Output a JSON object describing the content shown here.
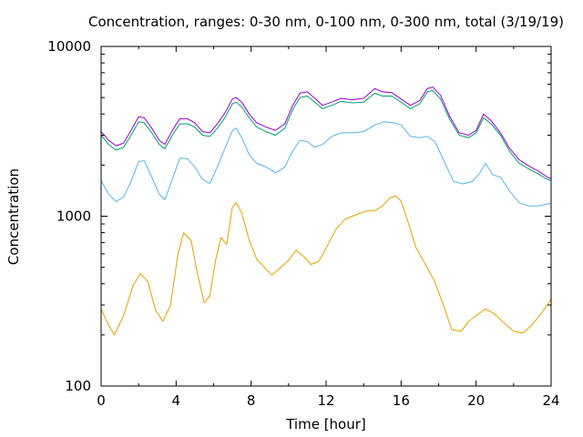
{
  "chart_data": {
    "type": "line",
    "title": "Concentration, ranges: 0-30 nm, 0-100 nm, 0-300 nm, total (3/19/19)",
    "xlabel": "Time [hour]",
    "ylabel": "Concentration",
    "xlim": [
      0,
      24
    ],
    "ylim": [
      100,
      10000
    ],
    "yscale": "log",
    "xticks": [
      0,
      4,
      8,
      12,
      16,
      20,
      24
    ],
    "xtick_labels": [
      "0",
      "4",
      "8",
      "12",
      "16",
      "20",
      "24"
    ],
    "yticks": [
      100,
      1000,
      10000
    ],
    "ytick_labels": [
      "100",
      "1000",
      "10000"
    ],
    "grid": false,
    "legend": "none",
    "series": [
      {
        "color": "#e69f00",
        "points": [
          [
            0,
            285
          ],
          [
            0.3,
            240
          ],
          [
            0.7,
            200
          ],
          [
            1.2,
            260
          ],
          [
            1.7,
            390
          ],
          [
            2.1,
            460
          ],
          [
            2.5,
            410
          ],
          [
            2.9,
            280
          ],
          [
            3.3,
            240
          ],
          [
            3.7,
            300
          ],
          [
            4.1,
            600
          ],
          [
            4.4,
            800
          ],
          [
            4.8,
            720
          ],
          [
            5.1,
            480
          ],
          [
            5.5,
            310
          ],
          [
            5.8,
            340
          ],
          [
            6.1,
            550
          ],
          [
            6.4,
            750
          ],
          [
            6.7,
            680
          ],
          [
            7.0,
            1130
          ],
          [
            7.2,
            1200
          ],
          [
            7.5,
            1050
          ],
          [
            7.9,
            720
          ],
          [
            8.3,
            560
          ],
          [
            8.7,
            500
          ],
          [
            9.1,
            450
          ],
          [
            9.5,
            490
          ],
          [
            10.0,
            550
          ],
          [
            10.4,
            630
          ],
          [
            10.8,
            580
          ],
          [
            11.2,
            520
          ],
          [
            11.6,
            540
          ],
          [
            12.1,
            680
          ],
          [
            12.5,
            830
          ],
          [
            13.0,
            960
          ],
          [
            13.6,
            1020
          ],
          [
            14.1,
            1070
          ],
          [
            14.6,
            1080
          ],
          [
            15.0,
            1150
          ],
          [
            15.4,
            1280
          ],
          [
            15.7,
            1320
          ],
          [
            16.0,
            1230
          ],
          [
            16.4,
            900
          ],
          [
            16.8,
            650
          ],
          [
            17.3,
            520
          ],
          [
            17.8,
            410
          ],
          [
            18.3,
            290
          ],
          [
            18.7,
            215
          ],
          [
            19.2,
            210
          ],
          [
            19.6,
            240
          ],
          [
            20.1,
            265
          ],
          [
            20.5,
            285
          ],
          [
            21.0,
            265
          ],
          [
            21.5,
            235
          ],
          [
            22.0,
            210
          ],
          [
            22.5,
            205
          ],
          [
            23.0,
            230
          ],
          [
            23.5,
            270
          ],
          [
            24.0,
            325
          ]
        ]
      },
      {
        "color": "#56b4e9",
        "points": [
          [
            0,
            1620
          ],
          [
            0.4,
            1350
          ],
          [
            0.8,
            1220
          ],
          [
            1.2,
            1300
          ],
          [
            1.6,
            1600
          ],
          [
            2.0,
            2100
          ],
          [
            2.3,
            2120
          ],
          [
            2.7,
            1700
          ],
          [
            3.1,
            1350
          ],
          [
            3.4,
            1250
          ],
          [
            3.8,
            1650
          ],
          [
            4.2,
            2200
          ],
          [
            4.6,
            2180
          ],
          [
            5.0,
            1950
          ],
          [
            5.4,
            1650
          ],
          [
            5.8,
            1560
          ],
          [
            6.2,
            1950
          ],
          [
            6.6,
            2500
          ],
          [
            7.0,
            3200
          ],
          [
            7.2,
            3300
          ],
          [
            7.5,
            2900
          ],
          [
            7.9,
            2300
          ],
          [
            8.3,
            2050
          ],
          [
            8.8,
            1950
          ],
          [
            9.3,
            1800
          ],
          [
            9.8,
            1950
          ],
          [
            10.2,
            2400
          ],
          [
            10.6,
            2800
          ],
          [
            11.0,
            2750
          ],
          [
            11.4,
            2550
          ],
          [
            11.8,
            2650
          ],
          [
            12.3,
            2950
          ],
          [
            12.8,
            3100
          ],
          [
            13.4,
            3100
          ],
          [
            14.0,
            3150
          ],
          [
            14.6,
            3450
          ],
          [
            15.1,
            3600
          ],
          [
            15.6,
            3550
          ],
          [
            16.0,
            3450
          ],
          [
            16.5,
            2950
          ],
          [
            17.0,
            2900
          ],
          [
            17.4,
            2950
          ],
          [
            17.8,
            2750
          ],
          [
            18.3,
            2100
          ],
          [
            18.8,
            1600
          ],
          [
            19.3,
            1550
          ],
          [
            19.8,
            1600
          ],
          [
            20.2,
            1800
          ],
          [
            20.5,
            2050
          ],
          [
            20.9,
            1750
          ],
          [
            21.3,
            1700
          ],
          [
            21.8,
            1400
          ],
          [
            22.3,
            1200
          ],
          [
            22.8,
            1150
          ],
          [
            23.3,
            1150
          ],
          [
            23.8,
            1180
          ],
          [
            24.0,
            1190
          ]
        ]
      },
      {
        "color": "#009e73",
        "points": [
          [
            0,
            3000
          ],
          [
            0.4,
            2650
          ],
          [
            0.8,
            2450
          ],
          [
            1.2,
            2550
          ],
          [
            1.6,
            3000
          ],
          [
            2.0,
            3600
          ],
          [
            2.3,
            3550
          ],
          [
            2.7,
            3100
          ],
          [
            3.1,
            2650
          ],
          [
            3.4,
            2500
          ],
          [
            3.8,
            3000
          ],
          [
            4.2,
            3500
          ],
          [
            4.6,
            3500
          ],
          [
            5.0,
            3350
          ],
          [
            5.4,
            3000
          ],
          [
            5.8,
            2950
          ],
          [
            6.2,
            3300
          ],
          [
            6.6,
            3800
          ],
          [
            7.0,
            4600
          ],
          [
            7.2,
            4700
          ],
          [
            7.5,
            4400
          ],
          [
            7.9,
            3800
          ],
          [
            8.3,
            3350
          ],
          [
            8.8,
            3150
          ],
          [
            9.3,
            3000
          ],
          [
            9.8,
            3300
          ],
          [
            10.2,
            4200
          ],
          [
            10.6,
            5000
          ],
          [
            11.0,
            5100
          ],
          [
            11.4,
            4700
          ],
          [
            11.8,
            4300
          ],
          [
            12.3,
            4500
          ],
          [
            12.8,
            4750
          ],
          [
            13.4,
            4650
          ],
          [
            14.0,
            4700
          ],
          [
            14.6,
            5300
          ],
          [
            15.0,
            5100
          ],
          [
            15.5,
            5100
          ],
          [
            16.0,
            4700
          ],
          [
            16.5,
            4300
          ],
          [
            17.0,
            4600
          ],
          [
            17.4,
            5400
          ],
          [
            17.7,
            5500
          ],
          [
            18.1,
            4900
          ],
          [
            18.6,
            3700
          ],
          [
            19.1,
            3000
          ],
          [
            19.6,
            2900
          ],
          [
            20.0,
            3100
          ],
          [
            20.4,
            3800
          ],
          [
            20.8,
            3500
          ],
          [
            21.3,
            3000
          ],
          [
            21.8,
            2400
          ],
          [
            22.3,
            2050
          ],
          [
            22.8,
            1900
          ],
          [
            23.3,
            1780
          ],
          [
            23.8,
            1650
          ],
          [
            24.0,
            1620
          ]
        ]
      },
      {
        "color": "#9400d3",
        "points": [
          [
            0,
            3150
          ],
          [
            0.4,
            2800
          ],
          [
            0.8,
            2600
          ],
          [
            1.2,
            2700
          ],
          [
            1.6,
            3200
          ],
          [
            2.0,
            3850
          ],
          [
            2.3,
            3800
          ],
          [
            2.7,
            3300
          ],
          [
            3.1,
            2800
          ],
          [
            3.4,
            2650
          ],
          [
            3.8,
            3200
          ],
          [
            4.2,
            3750
          ],
          [
            4.6,
            3750
          ],
          [
            5.0,
            3550
          ],
          [
            5.4,
            3150
          ],
          [
            5.8,
            3100
          ],
          [
            6.2,
            3500
          ],
          [
            6.6,
            4050
          ],
          [
            7.0,
            4900
          ],
          [
            7.2,
            5000
          ],
          [
            7.5,
            4700
          ],
          [
            7.9,
            4000
          ],
          [
            8.3,
            3550
          ],
          [
            8.8,
            3350
          ],
          [
            9.3,
            3200
          ],
          [
            9.8,
            3500
          ],
          [
            10.2,
            4450
          ],
          [
            10.6,
            5300
          ],
          [
            11.0,
            5400
          ],
          [
            11.4,
            4950
          ],
          [
            11.8,
            4500
          ],
          [
            12.3,
            4700
          ],
          [
            12.8,
            4950
          ],
          [
            13.4,
            4850
          ],
          [
            14.0,
            4950
          ],
          [
            14.6,
            5650
          ],
          [
            15.0,
            5400
          ],
          [
            15.5,
            5350
          ],
          [
            16.0,
            4900
          ],
          [
            16.5,
            4500
          ],
          [
            17.0,
            4800
          ],
          [
            17.4,
            5650
          ],
          [
            17.7,
            5750
          ],
          [
            18.1,
            5150
          ],
          [
            18.6,
            3850
          ],
          [
            19.1,
            3100
          ],
          [
            19.6,
            3000
          ],
          [
            20.0,
            3200
          ],
          [
            20.4,
            4000
          ],
          [
            20.8,
            3650
          ],
          [
            21.3,
            3100
          ],
          [
            21.8,
            2500
          ],
          [
            22.3,
            2150
          ],
          [
            22.8,
            1980
          ],
          [
            23.3,
            1850
          ],
          [
            23.8,
            1700
          ],
          [
            24.0,
            1660
          ]
        ]
      }
    ]
  }
}
